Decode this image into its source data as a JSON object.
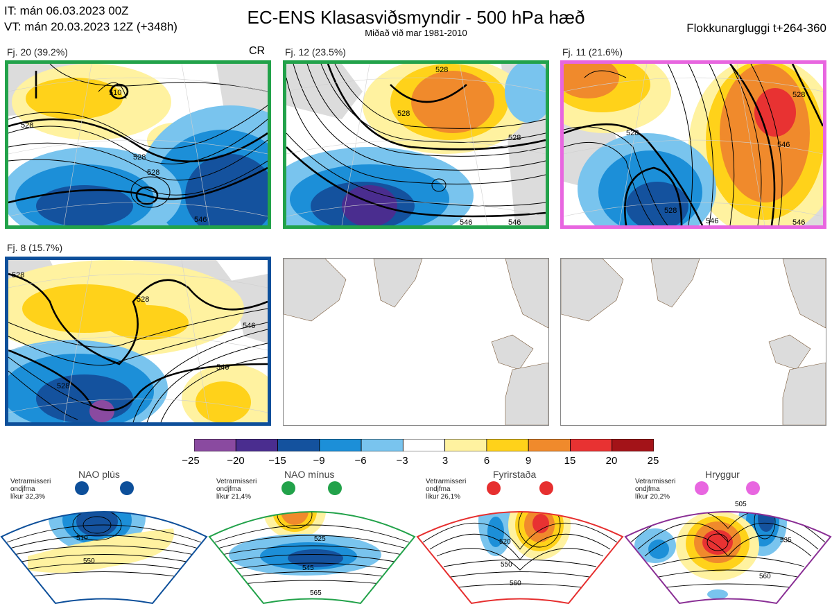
{
  "header": {
    "it_line": "IT: mán 06.03.2023 00Z",
    "vt_line": "VT: mán 20.03.2023 12Z  (+348h)",
    "title": "EC-ENS Klasasviðsmyndir - 500 hPa hæð",
    "subtitle": "Miðað við mar 1981-2010",
    "window": "Flokkunargluggi t+264-360"
  },
  "panels": [
    {
      "label": "Fj. 20 (39.2%)",
      "tag": "CR",
      "border": "#22a24a",
      "contours": [
        "528",
        "528",
        "528",
        "546",
        "510"
      ]
    },
    {
      "label": "Fj. 12 (23.5%)",
      "border": "#22a24a",
      "contours": [
        "528",
        "528",
        "528",
        "546",
        "546"
      ]
    },
    {
      "label": "Fj. 11 (21.6%)",
      "border": "#e866e0",
      "contours": [
        "528",
        "546",
        "528",
        "546",
        "546",
        "528"
      ]
    },
    {
      "label": "Fj. 8 (15.7%)",
      "border": "#0d4f9a",
      "contours": [
        "528",
        "528",
        "528",
        "546",
        "546"
      ]
    }
  ],
  "colorbar": {
    "ticks": [
      "−25",
      "−20",
      "−15",
      "−9",
      "−6",
      "−3",
      "3",
      "6",
      "9",
      "15",
      "20",
      "25"
    ],
    "colors": [
      "#8a4aa0",
      "#4a2d8f",
      "#14529e",
      "#1c8fd8",
      "#79c4ee",
      "#ffffff",
      "#fff2a0",
      "#ffd21a",
      "#f08a2c",
      "#e83232",
      "#a31318"
    ]
  },
  "regimes": [
    {
      "name": "NAO plús",
      "note_line1": "Vetrarmisseri",
      "note_line2": "ondjfma",
      "note_line3": "líkur 32,3%",
      "color": "#0d4f9a",
      "contour_labels": [
        "510",
        "550"
      ]
    },
    {
      "name": "NAO mínus",
      "note_line1": "Vetrarmisseri",
      "note_line2": "ondjfma",
      "note_line3": "líkur 21,4%",
      "color": "#22a24a",
      "contour_labels": [
        "525",
        "545",
        "565"
      ]
    },
    {
      "name": "Fyrirstaða",
      "note_line1": "Vetrarmisseri",
      "note_line2": "ondjfma",
      "note_line3": "líkur 26,1%",
      "color": "#e62f2f",
      "contour_labels": [
        "520",
        "550",
        "560"
      ]
    },
    {
      "name": "Hryggur",
      "note_line1": "Vetrarmisseri",
      "note_line2": "ondjfma",
      "note_line3": "líkur 20,2%",
      "color": "#8a2f95",
      "contour_labels": [
        "505",
        "535",
        "560"
      ]
    }
  ]
}
